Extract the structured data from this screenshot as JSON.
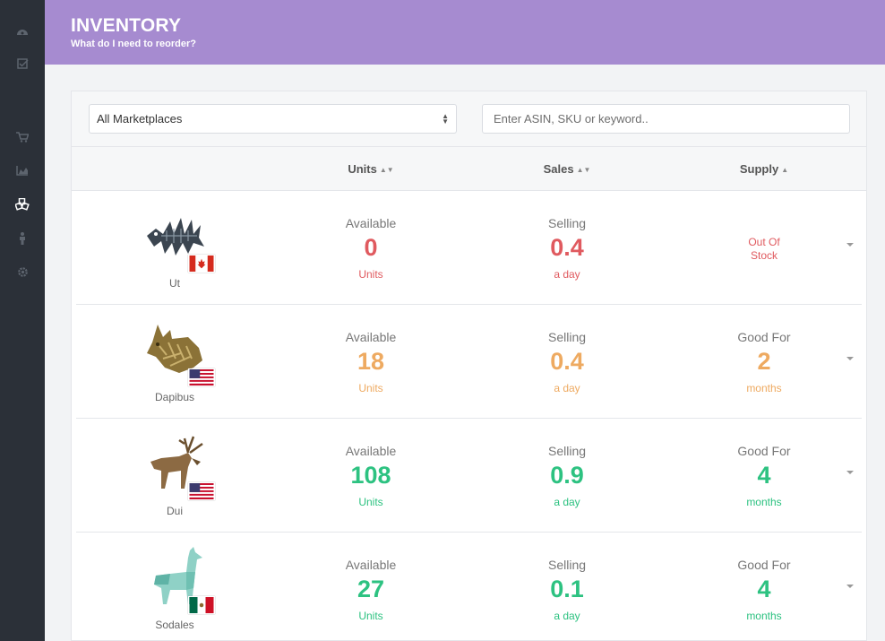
{
  "header": {
    "title": "INVENTORY",
    "subtitle": "What do I need to reorder?"
  },
  "sidebar": {
    "icons": [
      "dashboard-icon",
      "checklist-icon",
      "cart-icon",
      "chart-icon",
      "inventory-icon",
      "person-icon",
      "gear-icon"
    ],
    "active": "inventory-icon"
  },
  "filters": {
    "marketplace": "All Marketplaces",
    "search_placeholder": "Enter ASIN, SKU or keyword.."
  },
  "columns": {
    "units": "Units",
    "sales": "Sales",
    "supply": "Supply"
  },
  "products": [
    {
      "name": "Ut",
      "flag": "canada-flag",
      "units_label": "Available",
      "units": "0",
      "units_unit": "Units",
      "sales_label": "Selling",
      "sales": "0.4",
      "sales_unit": "a day",
      "supply_text": "Out Of Stock",
      "status": "red"
    },
    {
      "name": "Dapibus",
      "flag": "usa-flag",
      "units_label": "Available",
      "units": "18",
      "units_unit": "Units",
      "sales_label": "Selling",
      "sales": "0.4",
      "sales_unit": "a day",
      "supply_label": "Good For",
      "supply": "2",
      "supply_unit": "months",
      "status": "orange"
    },
    {
      "name": "Dui",
      "flag": "usa-flag",
      "units_label": "Available",
      "units": "108",
      "units_unit": "Units",
      "sales_label": "Selling",
      "sales": "0.9",
      "sales_unit": "a day",
      "supply_label": "Good For",
      "supply": "4",
      "supply_unit": "months",
      "status": "green"
    },
    {
      "name": "Sodales",
      "flag": "mexico-flag",
      "units_label": "Available",
      "units": "27",
      "units_unit": "Units",
      "sales_label": "Selling",
      "sales": "0.1",
      "sales_unit": "a day",
      "supply_label": "Good For",
      "supply": "4",
      "supply_unit": "months",
      "status": "green"
    }
  ],
  "colors": {
    "header": "#a68bd0",
    "sidebar": "#2b3038",
    "red": "#e05a5f",
    "orange": "#eeaa61",
    "green": "#2dc281"
  }
}
